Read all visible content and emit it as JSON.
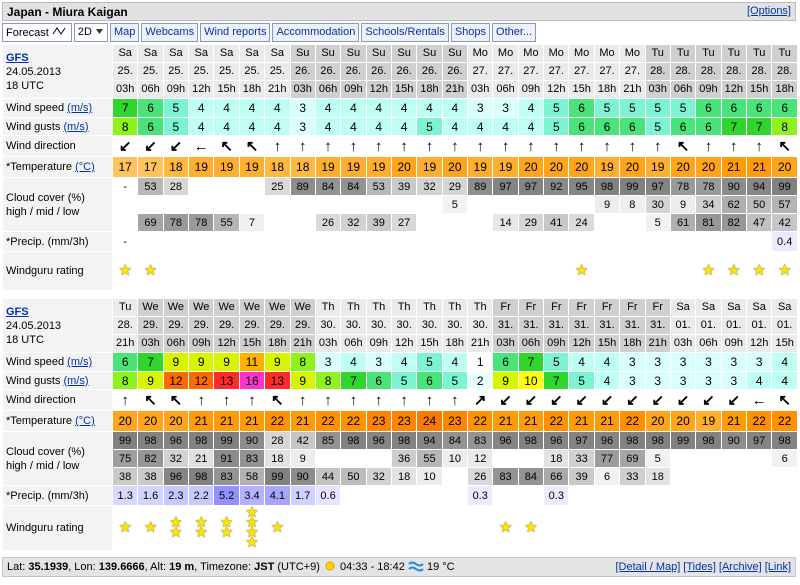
{
  "header": {
    "title": "Japan - Miura Kaigan",
    "options": "[Options]"
  },
  "tabs": [
    "Forecast",
    "2D",
    "Map",
    "Webcams",
    "Wind reports",
    "Accommodation",
    "Schools/Rentals",
    "Shops",
    "Other..."
  ],
  "row_labels": {
    "wind_speed": "Wind speed",
    "unit_speed": "(m/s)",
    "wind_gusts": "Wind gusts",
    "unit_gusts": "(m/s)",
    "wind_direction": "Wind direction",
    "temperature": "*Temperature",
    "unit_temp": "(°C)",
    "cloud": "Cloud cover (%)",
    "cloud_levels": "high / mid / low",
    "precip": "*Precip. (mm/3h)",
    "rating": "Windguru rating"
  },
  "blocks": [
    {
      "model": "GFS",
      "init_date": "24.05.2013",
      "init_time": "18 UTC",
      "days": [
        "Sa",
        "Sa",
        "Sa",
        "Sa",
        "Sa",
        "Sa",
        "Sa",
        "Su",
        "Su",
        "Su",
        "Su",
        "Su",
        "Su",
        "Su",
        "Mo",
        "Mo",
        "Mo",
        "Mo",
        "Mo",
        "Mo",
        "Mo",
        "Tu",
        "Tu",
        "Tu",
        "Tu",
        "Tu",
        "Tu"
      ],
      "dates": [
        "25.",
        "25.",
        "25.",
        "25.",
        "25.",
        "25.",
        "25.",
        "26.",
        "26.",
        "26.",
        "26.",
        "26.",
        "26.",
        "26.",
        "27.",
        "27.",
        "27.",
        "27.",
        "27.",
        "27.",
        "27.",
        "28.",
        "28.",
        "28.",
        "28.",
        "28.",
        "28."
      ],
      "hours": [
        "03h",
        "06h",
        "09h",
        "12h",
        "15h",
        "18h",
        "21h",
        "03h",
        "06h",
        "09h",
        "12h",
        "15h",
        "18h",
        "21h",
        "03h",
        "06h",
        "09h",
        "12h",
        "15h",
        "18h",
        "21h",
        "03h",
        "06h",
        "09h",
        "12h",
        "15h",
        "18h"
      ],
      "wind_speed": [
        7,
        6,
        5,
        4,
        4,
        4,
        4,
        3,
        4,
        4,
        4,
        4,
        4,
        4,
        3,
        3,
        4,
        5,
        6,
        5,
        5,
        5,
        5,
        6,
        6,
        6,
        6
      ],
      "wind_gusts": [
        8,
        6,
        5,
        4,
        4,
        4,
        4,
        3,
        4,
        4,
        4,
        4,
        5,
        4,
        4,
        4,
        4,
        5,
        6,
        6,
        6,
        5,
        6,
        6,
        7,
        7,
        8
      ],
      "wind_direction": [
        "↙",
        "↙",
        "↙",
        "←",
        "↖",
        "↖",
        "↑",
        "↑",
        "↑",
        "↑",
        "↑",
        "↑",
        "↑",
        "↑",
        "↑",
        "↑",
        "↑",
        "↑",
        "↑",
        "↑",
        "↑",
        "↑",
        "↖",
        "↑",
        "↑",
        "↑",
        "↖"
      ],
      "temperature": [
        17,
        17,
        18,
        19,
        19,
        19,
        18,
        18,
        19,
        19,
        19,
        20,
        19,
        20,
        19,
        19,
        20,
        20,
        20,
        19,
        20,
        19,
        20,
        20,
        21,
        21,
        20
      ],
      "cloud_high": [
        "-",
        53,
        28,
        null,
        null,
        null,
        25,
        89,
        84,
        84,
        53,
        39,
        32,
        29,
        89,
        97,
        97,
        92,
        95,
        98,
        99,
        97,
        78,
        78,
        90,
        94,
        99
      ],
      "cloud_mid": [
        null,
        null,
        null,
        null,
        null,
        null,
        null,
        null,
        null,
        null,
        null,
        null,
        null,
        5,
        null,
        null,
        null,
        null,
        null,
        9,
        8,
        30,
        9,
        34,
        62,
        50,
        57
      ],
      "cloud_low": [
        null,
        69,
        78,
        78,
        55,
        7,
        null,
        null,
        26,
        32,
        39,
        27,
        null,
        null,
        null,
        14,
        29,
        41,
        24,
        null,
        null,
        5,
        61,
        81,
        82,
        47,
        42
      ],
      "precip": [
        "-",
        null,
        null,
        null,
        null,
        null,
        null,
        null,
        null,
        null,
        null,
        null,
        null,
        null,
        null,
        null,
        null,
        null,
        null,
        null,
        null,
        null,
        null,
        null,
        null,
        null,
        0.4
      ],
      "rating": [
        1,
        1,
        0,
        0,
        0,
        0,
        0,
        0,
        0,
        0,
        0,
        0,
        0,
        0,
        0,
        0,
        0,
        0,
        1,
        0,
        0,
        0,
        0,
        1,
        1,
        1,
        1
      ]
    },
    {
      "model": "GFS",
      "init_date": "24.05.2013",
      "init_time": "18 UTC",
      "days": [
        "Tu",
        "We",
        "We",
        "We",
        "We",
        "We",
        "We",
        "We",
        "Th",
        "Th",
        "Th",
        "Th",
        "Th",
        "Th",
        "Th",
        "Fr",
        "Fr",
        "Fr",
        "Fr",
        "Fr",
        "Fr",
        "Fr",
        "Sa",
        "Sa",
        "Sa",
        "Sa",
        "Sa"
      ],
      "dates": [
        "28.",
        "29.",
        "29.",
        "29.",
        "29.",
        "29.",
        "29.",
        "29.",
        "30.",
        "30.",
        "30.",
        "30.",
        "30.",
        "30.",
        "30.",
        "31.",
        "31.",
        "31.",
        "31.",
        "31.",
        "31.",
        "31.",
        "01.",
        "01.",
        "01.",
        "01.",
        "01."
      ],
      "hours": [
        "21h",
        "03h",
        "06h",
        "09h",
        "12h",
        "15h",
        "18h",
        "21h",
        "03h",
        "06h",
        "09h",
        "12h",
        "15h",
        "18h",
        "21h",
        "03h",
        "06h",
        "09h",
        "12h",
        "15h",
        "18h",
        "21h",
        "03h",
        "06h",
        "09h",
        "12h",
        "15h"
      ],
      "wind_speed": [
        6,
        7,
        9,
        9,
        9,
        11,
        9,
        8,
        3,
        4,
        3,
        4,
        5,
        4,
        1,
        6,
        7,
        5,
        4,
        4,
        3,
        3,
        3,
        3,
        3,
        3,
        4
      ],
      "wind_gusts": [
        8,
        9,
        12,
        12,
        13,
        16,
        13,
        9,
        8,
        7,
        6,
        5,
        6,
        5,
        2,
        9,
        10,
        7,
        5,
        4,
        3,
        3,
        3,
        3,
        3,
        4,
        4
      ],
      "wind_direction": [
        "↑",
        "↖",
        "↖",
        "↑",
        "↑",
        "↑",
        "↖",
        "↑",
        "↑",
        "↑",
        "↑",
        "↑",
        "↑",
        "↑",
        "↗",
        "↙",
        "↙",
        "↙",
        "↙",
        "↙",
        "↙",
        "↙",
        "↙",
        "↙",
        "↙",
        "←",
        "↖"
      ],
      "temperature": [
        20,
        20,
        20,
        21,
        21,
        21,
        22,
        21,
        22,
        22,
        23,
        23,
        24,
        23,
        22,
        21,
        21,
        22,
        21,
        21,
        22,
        20,
        20,
        19,
        21,
        22,
        22
      ],
      "cloud_high": [
        99,
        98,
        96,
        98,
        99,
        90,
        28,
        42,
        85,
        98,
        96,
        98,
        94,
        84,
        83,
        96,
        98,
        96,
        97,
        96,
        98,
        98,
        99,
        98,
        90,
        97,
        98
      ],
      "cloud_mid": [
        75,
        82,
        32,
        21,
        91,
        83,
        18,
        9,
        null,
        null,
        null,
        36,
        55,
        10,
        12,
        null,
        null,
        18,
        33,
        77,
        69,
        5,
        null,
        null,
        null,
        null,
        6
      ],
      "cloud_low": [
        38,
        38,
        96,
        98,
        83,
        58,
        99,
        90,
        44,
        50,
        32,
        18,
        10,
        null,
        26,
        83,
        84,
        66,
        39,
        6,
        33,
        18,
        null,
        null,
        null,
        null,
        null
      ],
      "precip": [
        1.3,
        1.6,
        2.3,
        2.2,
        5.2,
        3.4,
        4.1,
        1.7,
        0.6,
        null,
        null,
        null,
        null,
        null,
        0.3,
        null,
        null,
        0.3,
        null,
        null,
        null,
        null,
        null,
        null,
        null,
        null,
        null
      ],
      "rating": [
        1,
        1,
        2,
        2,
        2,
        4,
        1,
        0,
        0,
        0,
        0,
        0,
        0,
        0,
        0,
        1,
        1,
        0,
        0,
        0,
        0,
        0,
        0,
        0,
        0,
        0,
        0
      ]
    }
  ],
  "footer": {
    "lat_label": "Lat:",
    "lat": "35.1939",
    "lon_label": ", Lon:",
    "lon": "139.6666",
    "alt_label": ", Alt:",
    "alt": "19 m",
    "tz_label": ", Timezone:",
    "tz": "JST",
    "tz_offset": "(UTC+9)",
    "sun": "04:33 - 18:42",
    "water_temp": "19 °C",
    "links": [
      "[Detail / Map]",
      "[Tides]",
      "[Archive]",
      "[Link]"
    ]
  }
}
